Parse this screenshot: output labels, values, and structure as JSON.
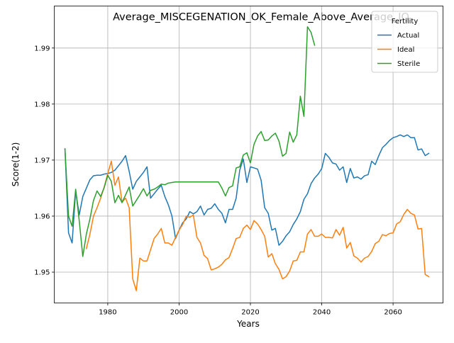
{
  "chart_data": {
    "type": "line",
    "title": "Average_MISCEGENATION_OK_Female_Above_Average_IQ",
    "xlabel": "Years",
    "ylabel": "Score(1-2)",
    "xlim": [
      1965,
      2074
    ],
    "ylim": [
      1.9445,
      1.9975
    ],
    "xticks": [
      1980,
      2000,
      2020,
      2040,
      2060
    ],
    "yticks": [
      1.95,
      1.96,
      1.97,
      1.98,
      1.99
    ],
    "ytick_labels": [
      "1.95",
      "1.96",
      "1.97",
      "1.98",
      "1.99"
    ],
    "grid": true,
    "legend": {
      "title": "Fertility",
      "position": "top-right"
    },
    "series": [
      {
        "name": "Actual",
        "color": "#1f77b4",
        "x": [
          1968,
          1969,
          1970,
          1971,
          1972,
          1973,
          1974,
          1975,
          1976,
          1977,
          1978,
          1979,
          1980,
          1981,
          1982,
          1983,
          1984,
          1985,
          1986,
          1987,
          1988,
          1989,
          1990,
          1991,
          1992,
          1993,
          1994,
          1995,
          1996,
          1997,
          1998,
          1999,
          2000,
          2001,
          2002,
          2003,
          2004,
          2005,
          2006,
          2007,
          2008,
          2009,
          2010,
          2011,
          2012,
          2013,
          2014,
          2015,
          2016,
          2017,
          2018,
          2019,
          2020,
          2021,
          2022,
          2023,
          2024,
          2025,
          2026,
          2027,
          2028,
          2029,
          2030,
          2031,
          2032,
          2033,
          2034,
          2035,
          2036,
          2037,
          2038,
          2039,
          2040,
          2041,
          2042,
          2043,
          2044,
          2045,
          2046,
          2047,
          2048,
          2049,
          2050,
          2051,
          2052,
          2053,
          2054,
          2055,
          2056,
          2057,
          2058,
          2059,
          2060,
          2061,
          2062,
          2063,
          2064,
          2065,
          2066,
          2067,
          2068,
          2069,
          2070
        ],
        "y": [
          1.972,
          1.957,
          1.9552,
          1.9645,
          1.9602,
          1.9635,
          1.965,
          1.9665,
          1.9672,
          1.9673,
          1.9673,
          1.9675,
          1.9676,
          1.9678,
          1.9682,
          1.969,
          1.9698,
          1.9708,
          1.968,
          1.9648,
          1.9662,
          1.967,
          1.9678,
          1.9688,
          1.9632,
          1.964,
          1.9648,
          1.9655,
          1.9635,
          1.962,
          1.96,
          1.956,
          1.9575,
          1.9588,
          1.9595,
          1.9608,
          1.9604,
          1.9608,
          1.9618,
          1.9602,
          1.9612,
          1.9614,
          1.9622,
          1.9612,
          1.9605,
          1.9588,
          1.9612,
          1.9612,
          1.9632,
          1.9682,
          1.9702,
          1.966,
          1.9688,
          1.9686,
          1.9684,
          1.9664,
          1.9615,
          1.9605,
          1.9575,
          1.9578,
          1.9548,
          1.9555,
          1.9565,
          1.9572,
          1.9585,
          1.9595,
          1.9608,
          1.963,
          1.964,
          1.9658,
          1.9668,
          1.9675,
          1.9685,
          1.9712,
          1.9705,
          1.9695,
          1.9693,
          1.9682,
          1.9688,
          1.966,
          1.9685,
          1.9668,
          1.967,
          1.9666,
          1.9672,
          1.9674,
          1.9698,
          1.9692,
          1.9708,
          1.9722,
          1.9728,
          1.9735,
          1.974,
          1.9742,
          1.9745,
          1.9742,
          1.9745,
          1.974,
          1.974,
          1.9718,
          1.972,
          1.9708,
          1.9712
        ]
      },
      {
        "name": "Ideal",
        "color": "#ff7f0e",
        "x": [
          1974,
          1975,
          1976,
          1977,
          1978,
          1979,
          1980,
          1981,
          1982,
          1983,
          1984,
          1985,
          1986,
          1987,
          1988,
          1989,
          1990,
          1991,
          1992,
          1993,
          1994,
          1995,
          1996,
          1997,
          1998,
          1999,
          2000,
          2001,
          2002,
          2003,
          2004,
          2005,
          2006,
          2007,
          2008,
          2009,
          2010,
          2011,
          2012,
          2013,
          2014,
          2015,
          2016,
          2017,
          2018,
          2019,
          2020,
          2021,
          2022,
          2023,
          2024,
          2025,
          2026,
          2027,
          2028,
          2029,
          2030,
          2031,
          2032,
          2033,
          2034,
          2035,
          2036,
          2037,
          2038,
          2039,
          2040,
          2041,
          2042,
          2043,
          2044,
          2045,
          2046,
          2047,
          2048,
          2049,
          2050,
          2051,
          2052,
          2053,
          2054,
          2055,
          2056,
          2057,
          2058,
          2059,
          2060,
          2061,
          2062,
          2063,
          2064,
          2065,
          2066,
          2067,
          2068,
          2069,
          2070
        ],
        "y": [
          1.9542,
          1.9568,
          1.96,
          1.9615,
          1.9632,
          1.9652,
          1.9676,
          1.9698,
          1.9655,
          1.967,
          1.9625,
          1.9632,
          1.9615,
          1.9488,
          1.9467,
          1.9525,
          1.952,
          1.952,
          1.954,
          1.956,
          1.9568,
          1.9578,
          1.9552,
          1.9552,
          1.9548,
          1.9562,
          1.9575,
          1.9585,
          1.96,
          1.9598,
          1.9602,
          1.9562,
          1.9552,
          1.953,
          1.9524,
          1.9504,
          1.9506,
          1.9509,
          1.9514,
          1.9522,
          1.9526,
          1.9542,
          1.956,
          1.9562,
          1.9578,
          1.9584,
          1.9576,
          1.9592,
          1.9586,
          1.9576,
          1.9564,
          1.9527,
          1.9533,
          1.9515,
          1.9505,
          1.9488,
          1.9492,
          1.9502,
          1.952,
          1.9521,
          1.9536,
          1.9536,
          1.9568,
          1.9576,
          1.9564,
          1.9564,
          1.9568,
          1.9562,
          1.9562,
          1.9561,
          1.9576,
          1.9566,
          1.958,
          1.9543,
          1.9553,
          1.9529,
          1.9525,
          1.9518,
          1.9525,
          1.9528,
          1.9537,
          1.9551,
          1.9555,
          1.9567,
          1.9565,
          1.9569,
          1.957,
          1.9586,
          1.959,
          1.9603,
          1.9612,
          1.9605,
          1.9602,
          1.9577,
          1.9578,
          1.9496,
          1.9492
        ]
      },
      {
        "name": "Sterile",
        "color": "#2ca02c",
        "x": [
          1968,
          1969,
          1970,
          1971,
          1972,
          1973,
          1974,
          1975,
          1976,
          1977,
          1978,
          1979,
          1980,
          1981,
          1982,
          1983,
          1984,
          1985,
          1986,
          1987,
          1988,
          1989,
          1990,
          1991,
          1992,
          1993,
          1994,
          1995,
          1996,
          1997,
          1998,
          1999,
          2000,
          2001,
          2002,
          2003,
          2004,
          2005,
          2006,
          2007,
          2008,
          2009,
          2010,
          2011,
          2012,
          2013,
          2014,
          2015,
          2016,
          2017,
          2018,
          2019,
          2020,
          2021,
          2022,
          2023,
          2024,
          2025,
          2026,
          2027,
          2028,
          2029,
          2030,
          2031,
          2032,
          2033,
          2034,
          2035,
          2036,
          2037,
          2038
        ],
        "y": [
          1.972,
          1.96,
          1.9582,
          1.9648,
          1.9592,
          1.9528,
          1.9568,
          1.9595,
          1.9628,
          1.9645,
          1.9635,
          1.9651,
          1.9673,
          1.9662,
          1.9624,
          1.9637,
          1.9624,
          1.9638,
          1.9652,
          1.9618,
          1.9628,
          1.9638,
          1.9649,
          1.9636,
          1.9646,
          1.9648,
          1.9652,
          1.9657,
          1.9656,
          1.9659,
          1.966,
          1.9661,
          1.9661,
          1.9661,
          1.9661,
          1.9661,
          1.9661,
          1.9661,
          1.9661,
          1.9661,
          1.9661,
          1.9661,
          1.9661,
          1.9661,
          1.965,
          1.9636,
          1.9651,
          1.9654,
          1.9686,
          1.9688,
          1.9709,
          1.9713,
          1.9695,
          1.9728,
          1.9743,
          1.9751,
          1.9735,
          1.9736,
          1.9743,
          1.9748,
          1.9734,
          1.9707,
          1.9712,
          1.975,
          1.9732,
          1.9745,
          1.9814,
          1.9778,
          1.9938,
          1.9928,
          1.9905
        ]
      }
    ]
  }
}
